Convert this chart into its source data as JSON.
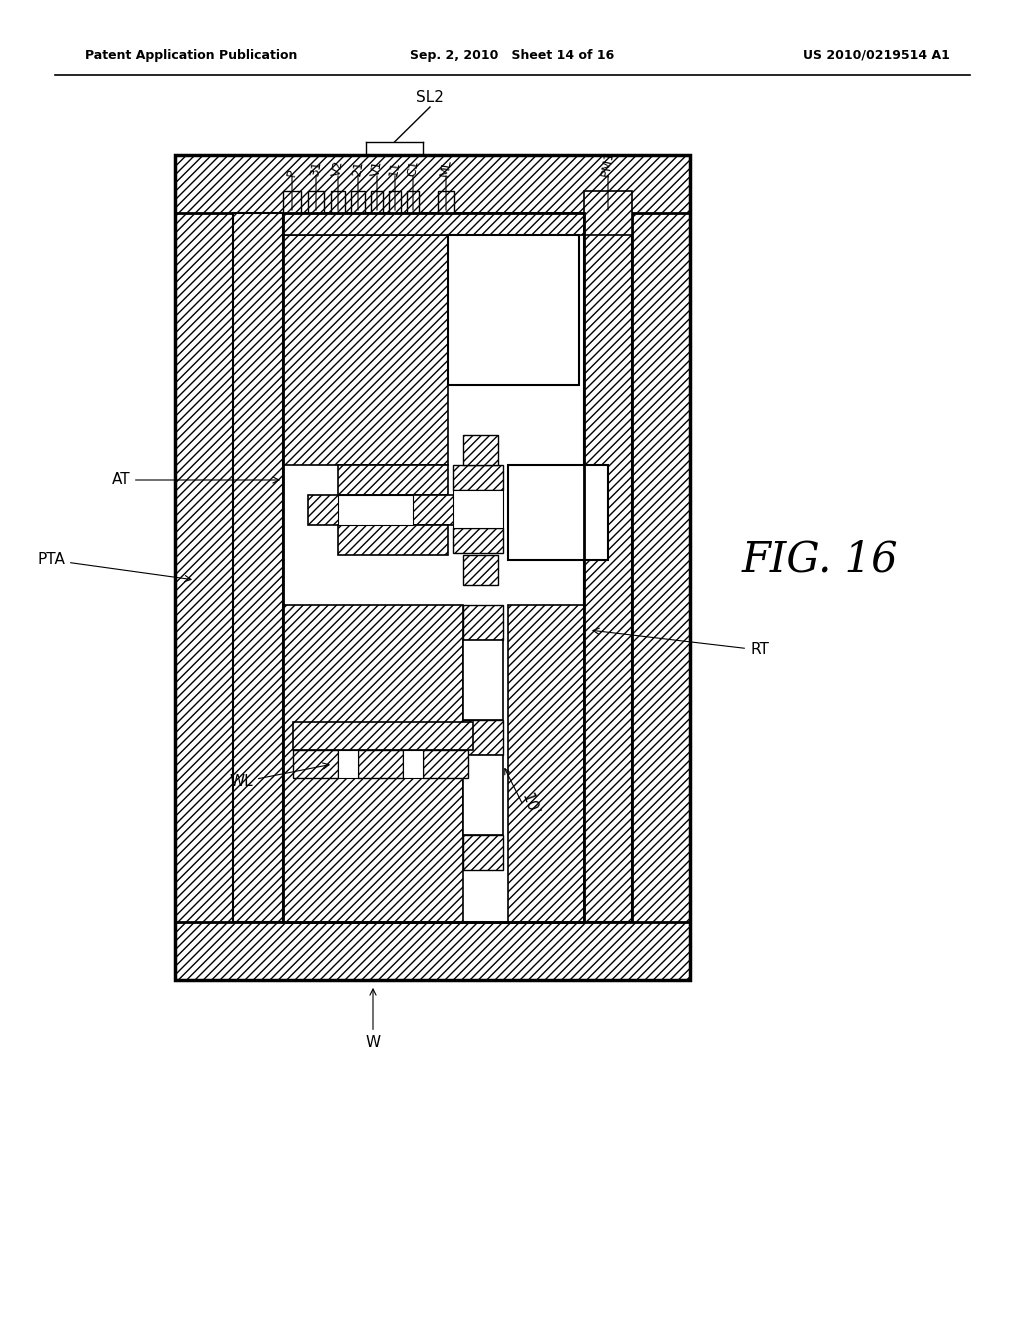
{
  "header_left": "Patent Application Publication",
  "header_center": "Sep. 2, 2010   Sheet 14 of 16",
  "header_right": "US 2010/0219514 A1",
  "title": "FIG. 16",
  "bg_color": "#ffffff"
}
